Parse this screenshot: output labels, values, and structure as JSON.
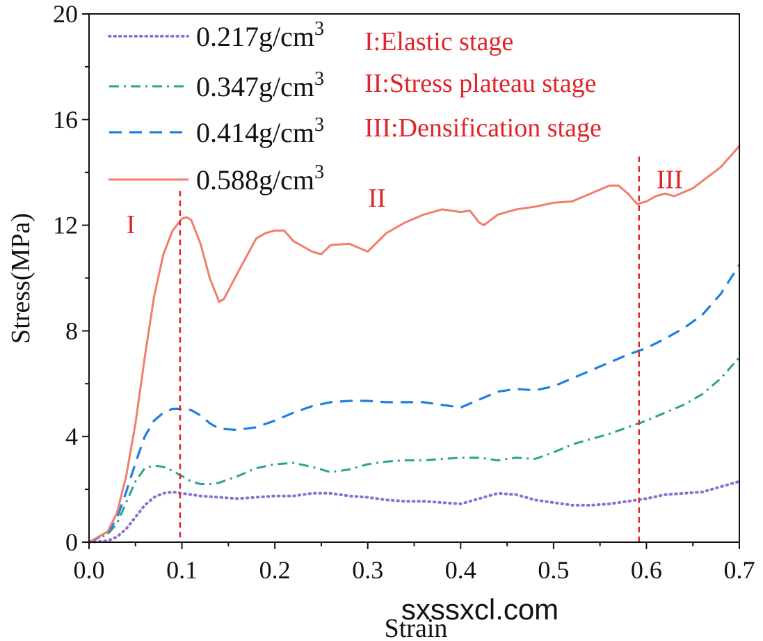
{
  "chart_data": {
    "type": "line",
    "xlabel": "Strain",
    "ylabel": "Stress(MPa)",
    "xlim": [
      0,
      0.7
    ],
    "ylim": [
      0,
      20
    ],
    "xticks": [
      0.0,
      0.1,
      0.2,
      0.3,
      0.4,
      0.5,
      0.6,
      0.7
    ],
    "xtick_labels": [
      "0.0",
      "0.1",
      "0.2",
      "0.3",
      "0.4",
      "0.5",
      "0.6",
      "0.7"
    ],
    "yticks": [
      0,
      4,
      8,
      12,
      16,
      20
    ],
    "ytick_labels": [
      "0",
      "4",
      "8",
      "12",
      "16",
      "20"
    ],
    "legend_position": "top-left",
    "series": [
      {
        "name": "0.217g/cm³",
        "label": "0.217g/cm",
        "sup": "3",
        "color": "#8e6fd1",
        "style": "dotted",
        "x": [
          0,
          0.02,
          0.03,
          0.04,
          0.05,
          0.06,
          0.07,
          0.08,
          0.09,
          0.1,
          0.12,
          0.14,
          0.16,
          0.18,
          0.2,
          0.22,
          0.24,
          0.26,
          0.28,
          0.3,
          0.32,
          0.34,
          0.36,
          0.38,
          0.4,
          0.42,
          0.44,
          0.46,
          0.48,
          0.5,
          0.52,
          0.54,
          0.56,
          0.58,
          0.6,
          0.62,
          0.64,
          0.66,
          0.68,
          0.7
        ],
        "y": [
          0,
          0.05,
          0.2,
          0.5,
          0.95,
          1.4,
          1.7,
          1.85,
          1.9,
          1.85,
          1.75,
          1.7,
          1.65,
          1.7,
          1.75,
          1.75,
          1.85,
          1.85,
          1.75,
          1.7,
          1.6,
          1.55,
          1.55,
          1.5,
          1.45,
          1.65,
          1.85,
          1.8,
          1.6,
          1.5,
          1.4,
          1.4,
          1.45,
          1.55,
          1.65,
          1.8,
          1.85,
          1.9,
          2.1,
          2.3
        ]
      },
      {
        "name": "0.347g/cm³",
        "label": "0.347g/cm",
        "sup": "3",
        "color": "#2aa294",
        "style": "dashdot",
        "x": [
          0,
          0.02,
          0.03,
          0.04,
          0.05,
          0.06,
          0.07,
          0.08,
          0.09,
          0.1,
          0.11,
          0.12,
          0.13,
          0.14,
          0.16,
          0.18,
          0.2,
          0.22,
          0.24,
          0.26,
          0.28,
          0.3,
          0.32,
          0.34,
          0.36,
          0.38,
          0.4,
          0.42,
          0.44,
          0.46,
          0.48,
          0.5,
          0.52,
          0.54,
          0.56,
          0.58,
          0.6,
          0.62,
          0.64,
          0.66,
          0.68,
          0.7
        ],
        "y": [
          0,
          0.3,
          0.7,
          1.5,
          2.3,
          2.8,
          2.9,
          2.85,
          2.7,
          2.5,
          2.3,
          2.2,
          2.2,
          2.25,
          2.5,
          2.8,
          2.95,
          3.0,
          2.85,
          2.65,
          2.75,
          2.95,
          3.05,
          3.1,
          3.1,
          3.15,
          3.2,
          3.2,
          3.1,
          3.2,
          3.15,
          3.4,
          3.7,
          3.9,
          4.1,
          4.35,
          4.6,
          4.9,
          5.2,
          5.6,
          6.2,
          7.0
        ]
      },
      {
        "name": "0.414g/cm³",
        "label": "0.414g/cm",
        "sup": "3",
        "color": "#1f7fe0",
        "style": "dashed",
        "x": [
          0,
          0.02,
          0.03,
          0.04,
          0.05,
          0.06,
          0.07,
          0.08,
          0.09,
          0.1,
          0.11,
          0.12,
          0.13,
          0.14,
          0.16,
          0.18,
          0.2,
          0.22,
          0.24,
          0.26,
          0.28,
          0.3,
          0.32,
          0.34,
          0.36,
          0.38,
          0.4,
          0.42,
          0.44,
          0.46,
          0.48,
          0.5,
          0.52,
          0.54,
          0.56,
          0.58,
          0.6,
          0.62,
          0.64,
          0.66,
          0.68,
          0.7
        ],
        "y": [
          0,
          0.35,
          0.9,
          1.9,
          3.0,
          4.0,
          4.6,
          4.9,
          5.05,
          5.05,
          5.0,
          4.8,
          4.5,
          4.3,
          4.25,
          4.35,
          4.6,
          4.9,
          5.15,
          5.3,
          5.35,
          5.35,
          5.3,
          5.3,
          5.3,
          5.2,
          5.1,
          5.4,
          5.7,
          5.8,
          5.75,
          5.9,
          6.2,
          6.5,
          6.8,
          7.1,
          7.35,
          7.7,
          8.1,
          8.6,
          9.4,
          10.5
        ]
      },
      {
        "name": "0.588g/cm³",
        "label": "0.588g/cm",
        "sup": "3",
        "color": "#f07e6a",
        "style": "solid",
        "x": [
          0,
          0.02,
          0.03,
          0.04,
          0.05,
          0.06,
          0.07,
          0.08,
          0.09,
          0.1,
          0.105,
          0.11,
          0.12,
          0.13,
          0.14,
          0.145,
          0.16,
          0.18,
          0.19,
          0.2,
          0.21,
          0.22,
          0.24,
          0.25,
          0.26,
          0.28,
          0.3,
          0.32,
          0.34,
          0.36,
          0.38,
          0.4,
          0.41,
          0.42,
          0.425,
          0.44,
          0.46,
          0.48,
          0.5,
          0.52,
          0.54,
          0.56,
          0.57,
          0.58,
          0.59,
          0.6,
          0.61,
          0.62,
          0.63,
          0.65,
          0.68,
          0.7
        ],
        "y": [
          0,
          0.4,
          1.1,
          2.5,
          4.5,
          7.0,
          9.3,
          10.9,
          11.8,
          12.25,
          12.3,
          12.2,
          11.3,
          10.0,
          9.1,
          9.2,
          10.2,
          11.5,
          11.7,
          11.8,
          11.8,
          11.4,
          11.0,
          10.9,
          11.25,
          11.3,
          11.0,
          11.7,
          12.1,
          12.4,
          12.6,
          12.5,
          12.55,
          12.1,
          12.0,
          12.4,
          12.6,
          12.7,
          12.85,
          12.9,
          13.2,
          13.5,
          13.5,
          13.2,
          12.8,
          12.9,
          13.1,
          13.2,
          13.1,
          13.4,
          14.2,
          15.0
        ]
      }
    ],
    "stage_lines": [
      {
        "x": 0.098,
        "y_from": 0,
        "y_to": 13.3
      },
      {
        "x": 0.592,
        "y_from": 0,
        "y_to": 14.6
      }
    ],
    "stage_markers": [
      {
        "label": "I",
        "x": 0.045,
        "y": 11.7
      },
      {
        "label": "II",
        "x": 0.31,
        "y": 12.7
      },
      {
        "label": "III",
        "x": 0.625,
        "y": 13.4
      }
    ],
    "stage_legend": [
      "I:Elastic stage",
      "II:Stress plateau stage",
      "III:Densification stage"
    ]
  },
  "watermark": "sxssxcl.com"
}
